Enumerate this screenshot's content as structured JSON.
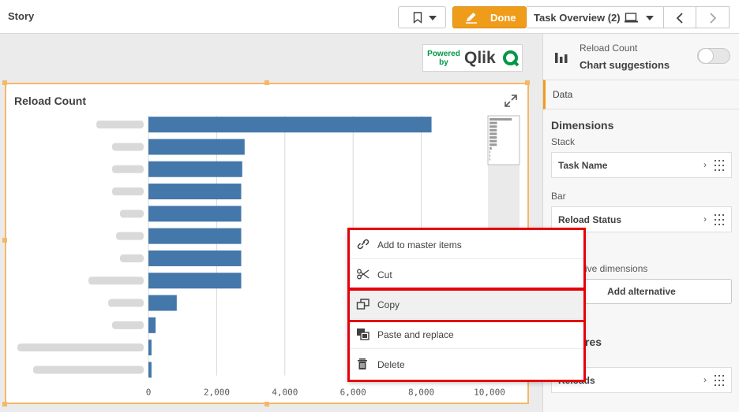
{
  "header": {
    "title": "Story",
    "done_label": "Done",
    "task_label": "Task Overview (2)"
  },
  "logo": {
    "powered_by": "Powered by",
    "brand": "Qlik"
  },
  "chart": {
    "title": "Reload Count"
  },
  "chart_data": {
    "type": "bar",
    "orientation": "horizontal",
    "title": "Reload Count",
    "categories": [
      "",
      "",
      "",
      "",
      "",
      "",
      "",
      "",
      "",
      "",
      "",
      ""
    ],
    "values": [
      8300,
      2820,
      2750,
      2720,
      2720,
      2720,
      2720,
      2720,
      830,
      210,
      90,
      90
    ],
    "xlim": [
      0,
      10000
    ],
    "x_ticks": [
      "0",
      "2,000",
      "4,000",
      "6,000",
      "8,000",
      "10,000"
    ],
    "grid": true,
    "bar_color": "#4477aa"
  },
  "panel": {
    "header_title": "Reload Count",
    "header_sub": "Chart suggestions",
    "data_tab": "Data",
    "dimensions_title": "Dimensions",
    "stack_label": "Stack",
    "stack_field": "Task Name",
    "bar_label": "Bar",
    "bar_field": "Reload Status",
    "alt_dims_label": "ive dimensions",
    "add_alt_label": "Add alternative",
    "measures_title": "res",
    "measure_field": "Reloads"
  },
  "context_menu": {
    "items": [
      {
        "label": "Add to master items",
        "icon": "link-icon"
      },
      {
        "label": "Cut",
        "icon": "scissors-icon"
      },
      {
        "label": "Copy",
        "icon": "copy-icon"
      },
      {
        "label": "Paste and replace",
        "icon": "paste-replace-icon"
      },
      {
        "label": "Delete",
        "icon": "trash-icon"
      }
    ]
  },
  "colors": {
    "accent": "#f09c1b",
    "highlight": "#e5000a",
    "bar": "#4477aa",
    "qlik_green": "#009845"
  }
}
